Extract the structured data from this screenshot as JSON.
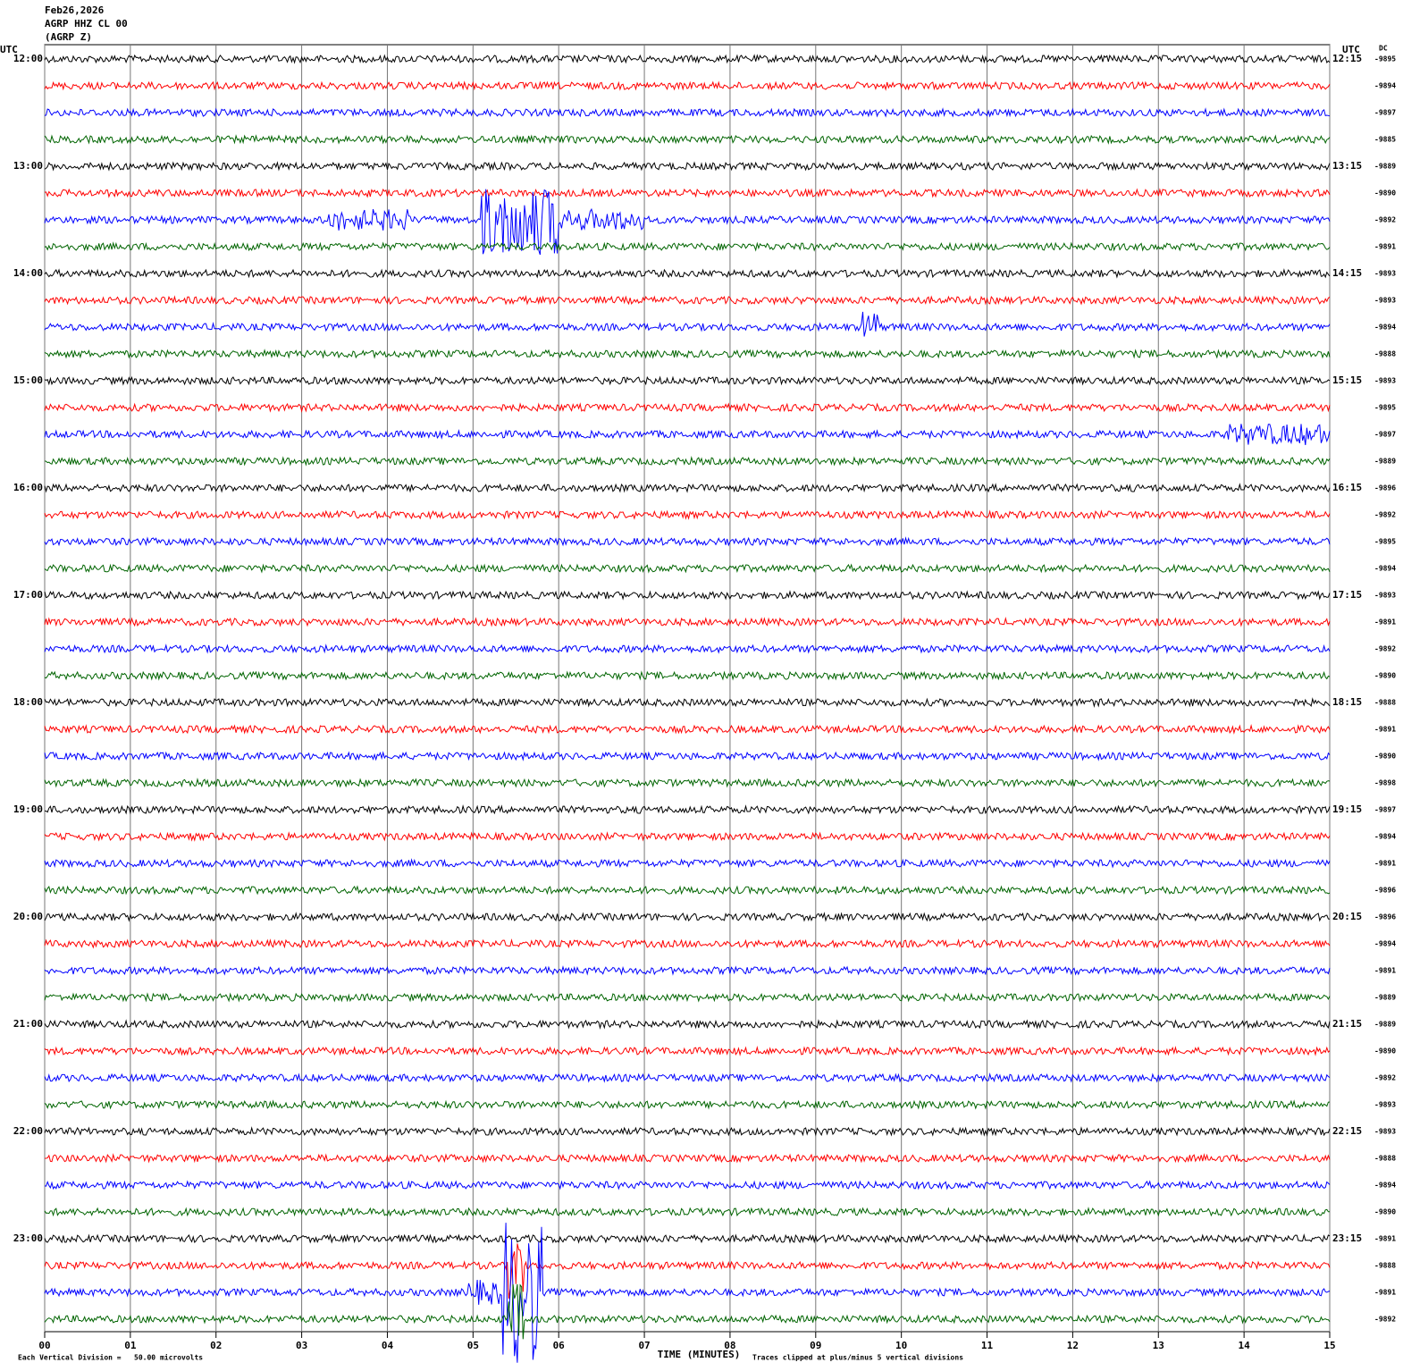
{
  "header": {
    "date": "Feb26,2026",
    "station": "AGRP HHZ CL 00",
    "channel": "(AGRP Z)"
  },
  "left_axis_title": "UTC",
  "right_axis_title": "UTC",
  "dc_title": "DC",
  "left_labels": [
    "12:00",
    "13:00",
    "14:00",
    "15:00",
    "16:00",
    "17:00",
    "18:00",
    "19:00",
    "20:00",
    "21:00",
    "22:00",
    "23:00"
  ],
  "right_labels": [
    "12:15",
    "13:15",
    "14:15",
    "15:15",
    "16:15",
    "17:15",
    "18:15",
    "19:15",
    "20:15",
    "21:15",
    "22:15",
    "23:15"
  ],
  "dc_values": [
    -9895,
    -9894,
    -9897,
    -9885,
    -9889,
    -9890,
    -9892,
    -9891,
    -9893,
    -9893,
    -9894,
    -9888,
    -9893,
    -9895,
    -9897,
    -9889,
    -9896,
    -9892,
    -9895,
    -9894,
    -9893,
    -9891,
    -9892,
    -9890,
    -9888,
    -9891,
    -9890,
    -9898,
    -9897,
    -9894,
    -9891,
    -9896,
    -9896,
    -9894,
    -9891,
    -9889,
    -9889,
    -9890,
    -9892,
    -9893,
    -9893,
    -9888,
    -9894,
    -9890,
    -9891,
    -9888,
    -9891,
    -9892
  ],
  "x_ticks": [
    "00",
    "01",
    "02",
    "03",
    "04",
    "05",
    "06",
    "07",
    "08",
    "09",
    "10",
    "11",
    "12",
    "13",
    "14",
    "15"
  ],
  "x_axis_title": "TIME (MINUTES)",
  "footer_scale": "Each Vertical Division =   50.00 microvolts",
  "footer_clip": "Traces clipped at plus/minus 5 vertical divisions",
  "trace_colors": [
    "#000000",
    "#ff0000",
    "#0000ff",
    "#006400"
  ]
}
